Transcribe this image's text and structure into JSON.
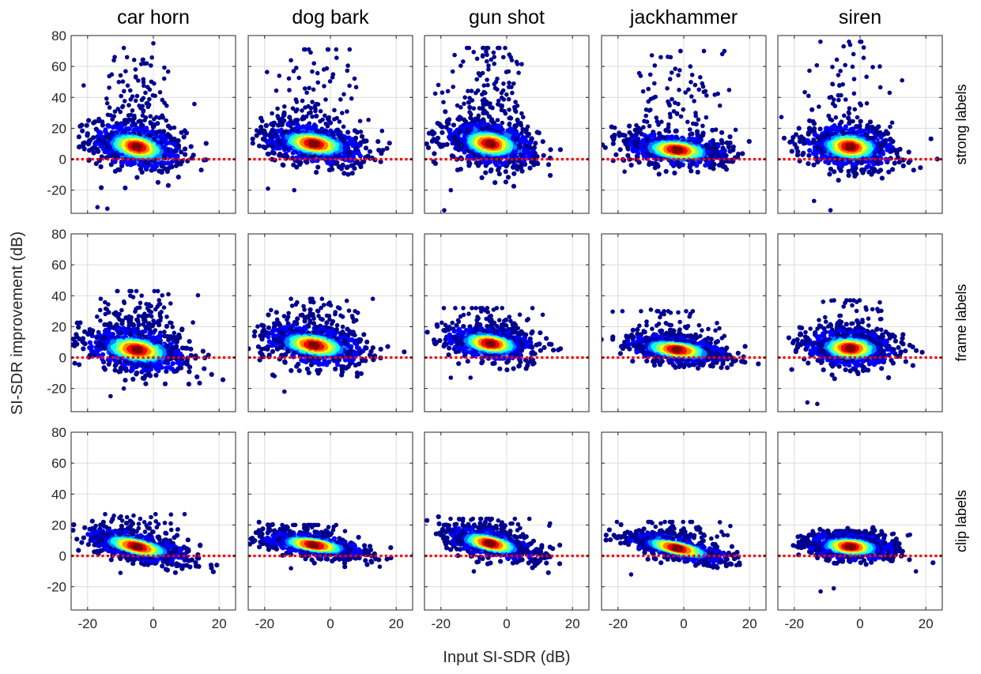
{
  "figure": {
    "ylabel": "SI-SDR improvement (dB)",
    "xlabel": "Input SI-SDR (dB)"
  },
  "chart_data": {
    "type": "scatter",
    "layout": "grid 3 rows x 5 columns",
    "columns": [
      "car horn",
      "dog bark",
      "gun shot",
      "jackhammer",
      "siren"
    ],
    "rows": [
      "strong labels",
      "frame labels",
      "clip labels"
    ],
    "xlim": [
      -25,
      25
    ],
    "ylim": [
      -35,
      80
    ],
    "x_ticks": [
      -20,
      0,
      20
    ],
    "y_ticks": [
      -20,
      0,
      20,
      40,
      60,
      80
    ],
    "grid": true,
    "reference_line": {
      "y": 0,
      "color": "#ff0000",
      "style": "dotted"
    },
    "colormap": [
      "#00008f",
      "#0000ff",
      "#0080ff",
      "#00ffff",
      "#80ff80",
      "#ffff00",
      "#ff8000",
      "#ff0000",
      "#800000"
    ],
    "colormap_meaning": "point density (blue = low, dark red = high)",
    "panels": [
      {
        "column": "car horn",
        "row": "strong labels",
        "center": [
          -5,
          8
        ],
        "spread": [
          7,
          8
        ],
        "tilt": -0.35,
        "outliers": 120,
        "outlier_ymax": 74,
        "ymin": -32,
        "points": [
          [
            -9,
            72
          ],
          [
            0,
            75
          ],
          [
            -12,
            64
          ],
          [
            -8,
            66
          ],
          [
            -2,
            62
          ],
          [
            -17,
            -31
          ],
          [
            -14,
            -32
          ]
        ]
      },
      {
        "column": "dog bark",
        "row": "strong labels",
        "center": [
          -5,
          10
        ],
        "spread": [
          8,
          7
        ],
        "tilt": -0.3,
        "outliers": 110,
        "outlier_ymax": 71,
        "ymin": -20,
        "points": [
          [
            -8,
            71
          ],
          [
            -6,
            69
          ],
          [
            -5,
            62
          ],
          [
            -12,
            64
          ],
          [
            -2,
            58
          ],
          [
            -19,
            -19
          ],
          [
            -11,
            -20
          ]
        ]
      },
      {
        "column": "gun shot",
        "row": "strong labels",
        "center": [
          -5,
          10
        ],
        "spread": [
          7,
          8
        ],
        "tilt": -0.3,
        "outliers": 160,
        "outlier_ymax": 72,
        "ymin": -33,
        "points": [
          [
            -7,
            72
          ],
          [
            -4,
            69
          ],
          [
            -1,
            66
          ],
          [
            3,
            63
          ],
          [
            -9,
            65
          ],
          [
            -19,
            -33
          ],
          [
            -17,
            -20
          ]
        ]
      },
      {
        "column": "jackhammer",
        "row": "strong labels",
        "center": [
          -2,
          6
        ],
        "spread": [
          8,
          6
        ],
        "tilt": -0.2,
        "outliers": 90,
        "outlier_ymax": 70,
        "ymin": -10,
        "points": [
          [
            -1,
            70
          ],
          [
            -4,
            66
          ],
          [
            -7,
            66
          ],
          [
            2,
            60
          ],
          [
            5,
            53
          ],
          [
            -18,
            -8
          ]
        ]
      },
      {
        "column": "siren",
        "row": "strong labels",
        "center": [
          -3,
          8
        ],
        "spread": [
          7,
          8
        ],
        "tilt": -0.15,
        "outliers": 70,
        "outlier_ymax": 76,
        "ymin": -33,
        "points": [
          [
            0,
            76
          ],
          [
            -3,
            74
          ],
          [
            -5,
            73
          ],
          [
            -2,
            68
          ],
          [
            6,
            60
          ],
          [
            9,
            43
          ],
          [
            -9,
            -33
          ],
          [
            -14,
            -27
          ]
        ]
      },
      {
        "column": "car horn",
        "row": "frame labels",
        "center": [
          -5,
          5
        ],
        "spread": [
          8,
          8
        ],
        "tilt": -0.3,
        "outliers": 130,
        "outlier_ymax": 43,
        "ymin": -25,
        "points": [
          [
            -11,
            43
          ],
          [
            -16,
            38
          ],
          [
            -7,
            40
          ],
          [
            -13,
            -25
          ],
          [
            -9,
            -20
          ]
        ]
      },
      {
        "column": "dog bark",
        "row": "frame labels",
        "center": [
          -5,
          8
        ],
        "spread": [
          8,
          7
        ],
        "tilt": -0.3,
        "outliers": 110,
        "outlier_ymax": 38,
        "ymin": -22,
        "points": [
          [
            -12,
            38
          ],
          [
            -6,
            36
          ],
          [
            -2,
            34
          ],
          [
            -14,
            -22
          ],
          [
            -17,
            -12
          ]
        ]
      },
      {
        "column": "gun shot",
        "row": "frame labels",
        "center": [
          -5,
          9
        ],
        "spread": [
          7,
          6
        ],
        "tilt": -0.25,
        "outliers": 80,
        "outlier_ymax": 32,
        "ymin": -13,
        "points": [
          [
            -8,
            32
          ],
          [
            -4,
            31
          ],
          [
            -17,
            -13
          ],
          [
            -11,
            -13
          ]
        ]
      },
      {
        "column": "jackhammer",
        "row": "frame labels",
        "center": [
          -2,
          5
        ],
        "spread": [
          8,
          5
        ],
        "tilt": -0.25,
        "outliers": 70,
        "outlier_ymax": 30,
        "ymin": -7,
        "points": [
          [
            -13,
            30
          ],
          [
            -10,
            31
          ],
          [
            -6,
            30
          ],
          [
            -4,
            29
          ]
        ]
      },
      {
        "column": "siren",
        "row": "frame labels",
        "center": [
          -3,
          6
        ],
        "spread": [
          7,
          7
        ],
        "tilt": -0.1,
        "outliers": 80,
        "outlier_ymax": 37,
        "ymin": -30,
        "points": [
          [
            -3,
            37
          ],
          [
            -1,
            36
          ],
          [
            -5,
            33
          ],
          [
            -16,
            -29
          ],
          [
            -13,
            -30
          ]
        ]
      },
      {
        "column": "car horn",
        "row": "clip labels",
        "center": [
          -5,
          6
        ],
        "spread": [
          8,
          5
        ],
        "tilt": -0.45,
        "outliers": 60,
        "outlier_ymax": 27,
        "ymin": -12,
        "points": [
          [
            -12,
            26
          ],
          [
            -8,
            25
          ],
          [
            -4,
            24
          ],
          [
            -10,
            -11
          ]
        ]
      },
      {
        "column": "dog bark",
        "row": "clip labels",
        "center": [
          -5,
          7
        ],
        "spread": [
          8,
          4
        ],
        "tilt": -0.3,
        "outliers": 50,
        "outlier_ymax": 20,
        "ymin": -9,
        "points": [
          [
            -8,
            20
          ],
          [
            -5,
            20
          ],
          [
            -12,
            -8
          ],
          [
            15,
            -7
          ]
        ]
      },
      {
        "column": "gun shot",
        "row": "clip labels",
        "center": [
          -5,
          8
        ],
        "spread": [
          7,
          5
        ],
        "tilt": -0.45,
        "outliers": 60,
        "outlier_ymax": 24,
        "ymin": -11,
        "points": [
          [
            -8,
            24
          ],
          [
            -5,
            23
          ],
          [
            -10,
            -10
          ]
        ]
      },
      {
        "column": "jackhammer",
        "row": "clip labels",
        "center": [
          -2,
          5
        ],
        "spread": [
          8,
          4
        ],
        "tilt": -0.45,
        "outliers": 60,
        "outlier_ymax": 22,
        "ymin": -12,
        "points": [
          [
            -10,
            22
          ],
          [
            -7,
            21
          ],
          [
            -16,
            -12
          ],
          [
            16,
            -6
          ]
        ]
      },
      {
        "column": "siren",
        "row": "clip labels",
        "center": [
          -3,
          6
        ],
        "spread": [
          7,
          5
        ],
        "tilt": -0.15,
        "outliers": 60,
        "outlier_ymax": 16,
        "ymin": -23,
        "points": [
          [
            -12,
            -23
          ],
          [
            -8,
            -21
          ],
          [
            17,
            -10
          ]
        ]
      }
    ]
  }
}
